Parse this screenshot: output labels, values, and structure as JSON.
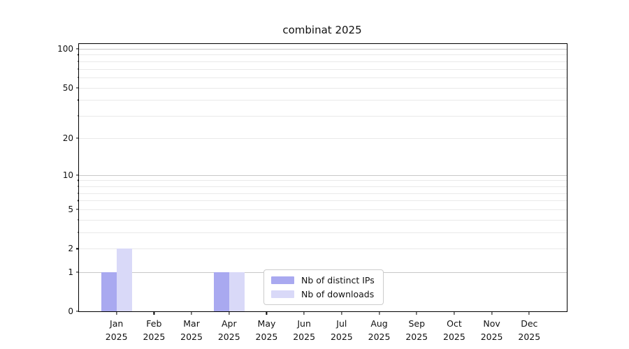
{
  "chart_data": {
    "type": "bar",
    "title": "combinat 2025",
    "categories": [
      {
        "month": "Jan",
        "year": "2025"
      },
      {
        "month": "Feb",
        "year": "2025"
      },
      {
        "month": "Mar",
        "year": "2025"
      },
      {
        "month": "Apr",
        "year": "2025"
      },
      {
        "month": "May",
        "year": "2025"
      },
      {
        "month": "Jun",
        "year": "2025"
      },
      {
        "month": "Jul",
        "year": "2025"
      },
      {
        "month": "Aug",
        "year": "2025"
      },
      {
        "month": "Sep",
        "year": "2025"
      },
      {
        "month": "Oct",
        "year": "2025"
      },
      {
        "month": "Nov",
        "year": "2025"
      },
      {
        "month": "Dec",
        "year": "2025"
      }
    ],
    "series": [
      {
        "name": "Nb of distinct IPs",
        "color": "#a9a9f0",
        "values": [
          1,
          0,
          0,
          1,
          0,
          0,
          0,
          0,
          0,
          0,
          0,
          0
        ]
      },
      {
        "name": "Nb of downloads",
        "color": "#d9d9f8",
        "values": [
          2,
          0,
          0,
          1,
          0,
          0,
          0,
          0,
          0,
          0,
          0,
          0
        ]
      }
    ],
    "y_ticks": [
      0,
      1,
      2,
      5,
      10,
      20,
      50,
      100
    ],
    "y_scale": "log1p",
    "ylim": [
      0,
      109
    ],
    "xlabel": "",
    "ylabel": "",
    "grid": true,
    "legend_position": "lower center inside"
  },
  "colors": {
    "background": "#ffffff",
    "spine": "#000000",
    "major_grid": "#c8c8c8",
    "minor_grid": "#e9e9e9",
    "legend_border": "#cccccc",
    "text": "#111111"
  }
}
